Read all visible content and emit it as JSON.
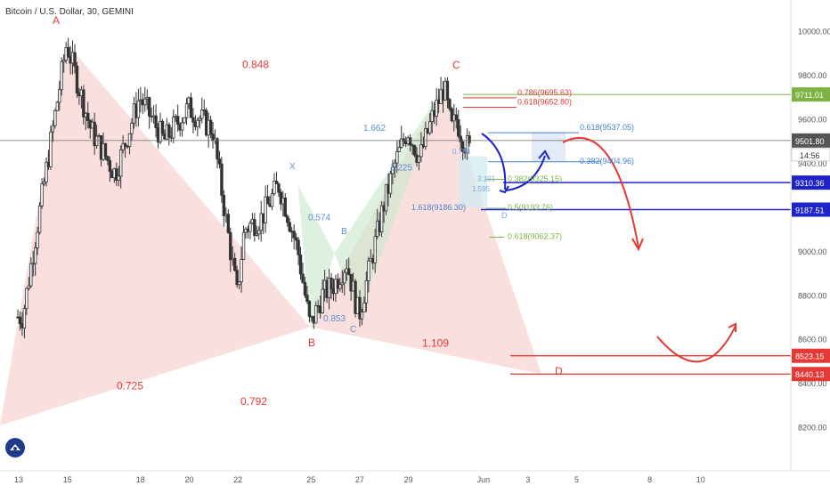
{
  "header": {
    "symbol_title": "Bitcoin / U.S. Dollar, 30, GEMINI"
  },
  "colors": {
    "up": "#26a69a",
    "down": "#ef5350",
    "candle": "#333333",
    "harmonic_big": "#f4c7c3",
    "harmonic_small": "#c8e6c9",
    "level_red": "#e53935",
    "level_blue": "#1e24c8",
    "level_green": "#7cb342",
    "fib_text": "#5b8fd6"
  },
  "chart_data": {
    "type": "candlestick",
    "title": "Bitcoin / U.S. Dollar, 30, GEMINI",
    "ylim": [
      8000,
      10100
    ],
    "y_ticks": [
      8200,
      8400,
      8600,
      8800,
      9000,
      9200,
      9400,
      9600,
      9800,
      10000
    ],
    "x_ticks": [
      "13",
      "15",
      "18",
      "20",
      "22",
      "25",
      "27",
      "29",
      "Jun",
      "3",
      "5",
      "8",
      "10"
    ],
    "price_labels": [
      {
        "value": 9711.01,
        "label": "9711.01",
        "color": "#7cb342"
      },
      {
        "value": 9501.8,
        "label": "9501.80",
        "color": "#555555"
      },
      {
        "value": 9310.36,
        "label": "9310.36",
        "color": "#1e24c8"
      },
      {
        "value": 9187.51,
        "label": "9187.51",
        "color": "#1e24c8"
      },
      {
        "value": 8523.15,
        "label": "8523.15",
        "color": "#e53935"
      },
      {
        "value": 8440.13,
        "label": "8440.13",
        "color": "#e53935"
      }
    ],
    "countdown": "14:56",
    "price_path": [
      [
        15,
        9944
      ],
      [
        16,
        9550
      ],
      [
        17,
        9350
      ],
      [
        18,
        9700
      ],
      [
        19,
        9500
      ],
      [
        20,
        9650
      ],
      [
        21,
        9550
      ],
      [
        22,
        8800
      ],
      [
        22.3,
        9100
      ],
      [
        23,
        9150
      ],
      [
        23.7,
        9300
      ],
      [
        24,
        9200
      ],
      [
        24.5,
        9000
      ],
      [
        25,
        8654
      ],
      [
        25.5,
        8800
      ],
      [
        26,
        8850
      ],
      [
        26.5,
        8950
      ],
      [
        27,
        8704
      ],
      [
        27.5,
        8950
      ],
      [
        28,
        9200
      ],
      [
        28.5,
        9400
      ],
      [
        29,
        9550
      ],
      [
        29.5,
        9420
      ],
      [
        30,
        9600
      ],
      [
        30.5,
        9746
      ],
      [
        30.8,
        9550
      ],
      [
        31,
        9600
      ],
      [
        31.3,
        9500
      ],
      [
        31.6,
        9450
      ]
    ],
    "patterns": [
      {
        "name": "big",
        "points": {
          "A": [
            15,
            9944
          ],
          "B": [
            25,
            8654
          ],
          "C": [
            30.5,
            9746
          ],
          "D": [
            34.5,
            8440
          ]
        },
        "ratios": [
          "0.848",
          "0.725",
          "0.792",
          "1.109"
        ]
      },
      {
        "name": "small",
        "points": {
          "X": [
            24.5,
            9300
          ],
          "A": [
            25,
            8654
          ],
          "B": [
            26,
            8990
          ],
          "C": [
            27,
            8704
          ],
          "D": [
            30.5,
            9746
          ]
        },
        "ratios": [
          "0.574",
          "0.853",
          "3.225",
          "1.662"
        ]
      }
    ],
    "point_labels": {
      "A": "A",
      "B": "B",
      "C": "C",
      "D": "D",
      "X": "X"
    },
    "fib_labels": [
      "0.786(9695.63)",
      "0.618(9652.80)",
      "0.618(9537.05)",
      "0.382(9404.96)",
      "0.382(9325.15)",
      "0.5(9193.76)",
      "1.618(9186.30)",
      "0.618(9062.37)",
      "3.191",
      "1.595",
      "0.788",
      "1.662",
      "3.225",
      "0.574",
      "0.853",
      "1.109",
      "0.848",
      "0.725",
      "0.792"
    ],
    "annotations": [
      {
        "type": "arrow_down",
        "color": "#1e24c8"
      },
      {
        "type": "arrow_up",
        "color": "#1e24c8"
      },
      {
        "type": "arrow_down_big",
        "color": "#e53935"
      },
      {
        "type": "arrow_u_turn",
        "color": "#e53935"
      }
    ]
  }
}
